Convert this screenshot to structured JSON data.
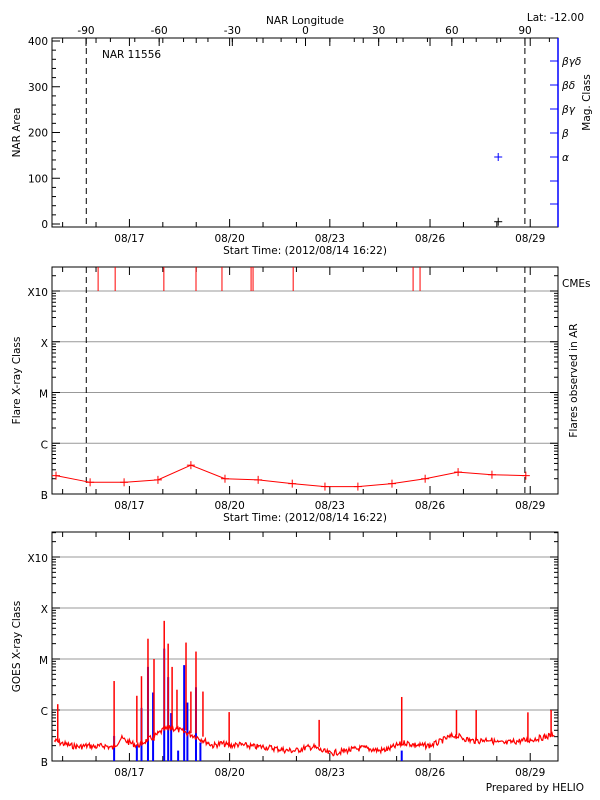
{
  "header": {
    "latitude_label": "Lat: -12.00",
    "region_label": "NAR 11556",
    "prepared_by": "Prepared by HELIO"
  },
  "colors": {
    "axes": "#000000",
    "grid": "#999999",
    "flare": "#ff0000",
    "goes_event": "#0000ff",
    "mag_class": "#0000ff",
    "cme": "#ff0000"
  },
  "x_axis": {
    "start": "2012/08/14 16:22",
    "label": "Start Time: (2012/08/14 16:22)",
    "tick_labels": [
      "08/17",
      "08/20",
      "08/23",
      "08/26",
      "08/29"
    ],
    "limb_crossings": [
      "08/15 17:00",
      "08/28 20:10"
    ]
  },
  "chart_data": [
    {
      "type": "scatter",
      "xlabel": "Start Time: (2012/08/14 16:22)",
      "ylabel": "NAR Area",
      "ylim": [
        0,
        400
      ],
      "yticks": [
        "0",
        "100",
        "200",
        "300",
        "400"
      ],
      "top_axis": {
        "label": "NAR Longitude",
        "ticks": [
          "-90",
          "-60",
          "-30",
          "0",
          "30",
          "60",
          "90"
        ]
      },
      "right_axis": {
        "label": "Mag. Class",
        "ticks": [
          "α",
          "β",
          "βγ",
          "βδ",
          "βγδ"
        ]
      },
      "area_points": [
        {
          "time": "08/28 01:00",
          "area": 5
        }
      ],
      "mag_class_points": [
        {
          "time": "08/28 01:00",
          "class": "α"
        }
      ]
    },
    {
      "type": "line",
      "xlabel": "Start Time: (2012/08/14 16:22)",
      "ylabel": "Flare X-ray Class",
      "right_label": "Flares observed in AR",
      "cme_label": "CMEs",
      "yscale": "log",
      "yticks": [
        "B",
        "C",
        "M",
        "X",
        "X10"
      ],
      "grid": true,
      "flares": [
        {
          "time": "08/14 19:15",
          "flux": 2.3e-07
        },
        {
          "time": "08/15 19:45",
          "flux": 1.7e-07
        },
        {
          "time": "08/16 20:10",
          "flux": 1.7e-07
        },
        {
          "time": "08/17 20:30",
          "flux": 1.9e-07
        },
        {
          "time": "08/18 20:10",
          "flux": 3.7e-07
        },
        {
          "time": "08/19 20:40",
          "flux": 2e-07
        },
        {
          "time": "08/20 20:30",
          "flux": 1.9e-07
        },
        {
          "time": "08/21 21:00",
          "flux": 1.6e-07
        },
        {
          "time": "08/22 20:30",
          "flux": 1.4e-07
        },
        {
          "time": "08/23 20:10",
          "flux": 1.4e-07
        },
        {
          "time": "08/24 20:40",
          "flux": 1.6e-07
        },
        {
          "time": "08/25 20:30",
          "flux": 2e-07
        },
        {
          "time": "08/26 20:10",
          "flux": 2.7e-07
        },
        {
          "time": "08/27 20:30",
          "flux": 2.4e-07
        },
        {
          "time": "08/28 20:50",
          "flux": 2.3e-07
        }
      ],
      "cmes": [
        "08/16 01:30",
        "08/16 13:45",
        "08/18 00:45",
        "08/18 23:50",
        "08/19 18:30",
        "08/20 15:25",
        "08/20 16:50",
        "08/21 21:40",
        "08/25 11:50",
        "08/25 16:50"
      ]
    },
    {
      "type": "line",
      "xlabel": "",
      "ylabel": "GOES X-ray Class",
      "yscale": "log",
      "yticks": [
        "B",
        "C",
        "M",
        "X",
        "X10"
      ],
      "grid": true,
      "background": [
        [
          "08/14 18:00",
          2.5e-07
        ],
        [
          "08/15 00:00",
          2.2e-07
        ],
        [
          "08/15 06:00",
          2e-07
        ],
        [
          "08/15 12:00",
          1.9e-07
        ],
        [
          "08/15 18:00",
          2e-07
        ],
        [
          "08/16 00:00",
          1.9e-07
        ],
        [
          "08/16 06:00",
          2e-07
        ],
        [
          "08/16 12:00",
          1.8e-07
        ],
        [
          "08/16 18:00",
          2.8e-07
        ],
        [
          "08/17 00:00",
          2.3e-07
        ],
        [
          "08/17 06:00",
          2e-07
        ],
        [
          "08/17 12:00",
          2.5e-07
        ],
        [
          "08/17 18:00",
          3e-07
        ],
        [
          "08/18 00:00",
          4e-07
        ],
        [
          "08/18 06:00",
          4.5e-07
        ],
        [
          "08/18 12:00",
          4e-07
        ],
        [
          "08/18 18:00",
          3.5e-07
        ],
        [
          "08/19 00:00",
          3e-07
        ],
        [
          "08/19 06:00",
          2.5e-07
        ],
        [
          "08/19 12:00",
          2e-07
        ],
        [
          "08/19 18:00",
          2.2e-07
        ],
        [
          "08/20 00:00",
          2e-07
        ],
        [
          "08/20 06:00",
          2.1e-07
        ],
        [
          "08/20 12:00",
          2e-07
        ],
        [
          "08/20 18:00",
          1.9e-07
        ],
        [
          "08/21 00:00",
          1.9e-07
        ],
        [
          "08/21 06:00",
          1.8e-07
        ],
        [
          "08/21 12:00",
          1.7e-07
        ],
        [
          "08/21 18:00",
          1.6e-07
        ],
        [
          "08/22 00:00",
          1.6e-07
        ],
        [
          "08/22 06:00",
          1.8e-07
        ],
        [
          "08/22 12:00",
          1.9e-07
        ],
        [
          "08/22 18:00",
          1.6e-07
        ],
        [
          "08/23 00:00",
          1.4e-07
        ],
        [
          "08/23 06:00",
          1.5e-07
        ],
        [
          "08/23 12:00",
          1.6e-07
        ],
        [
          "08/23 18:00",
          1.7e-07
        ],
        [
          "08/24 00:00",
          1.8e-07
        ],
        [
          "08/24 06:00",
          1.7e-07
        ],
        [
          "08/24 12:00",
          1.6e-07
        ],
        [
          "08/24 18:00",
          1.7e-07
        ],
        [
          "08/25 00:00",
          2e-07
        ],
        [
          "08/25 06:00",
          2.3e-07
        ],
        [
          "08/25 12:00",
          2.1e-07
        ],
        [
          "08/25 18:00",
          2e-07
        ],
        [
          "08/26 00:00",
          2e-07
        ],
        [
          "08/26 06:00",
          2.3e-07
        ],
        [
          "08/26 12:00",
          2.8e-07
        ],
        [
          "08/26 18:00",
          3.2e-07
        ],
        [
          "08/27 00:00",
          2.8e-07
        ],
        [
          "08/27 06:00",
          2.5e-07
        ],
        [
          "08/27 12:00",
          2.5e-07
        ],
        [
          "08/27 18:00",
          2.7e-07
        ],
        [
          "08/28 00:00",
          2.3e-07
        ],
        [
          "08/28 06:00",
          2.2e-07
        ],
        [
          "08/28 12:00",
          2.4e-07
        ],
        [
          "08/28 18:00",
          2.5e-07
        ],
        [
          "08/29 00:00",
          2.6e-07
        ],
        [
          "08/29 06:00",
          2.8e-07
        ],
        [
          "08/29 12:00",
          3e-07
        ],
        [
          "08/29 18:00",
          3.5e-07
        ]
      ],
      "peaks": [
        [
          "08/14 20:30",
          1.3e-06
        ],
        [
          "08/16 13:00",
          3.7e-06
        ],
        [
          "08/17 05:20",
          1.9e-06
        ],
        [
          "08/17 08:40",
          4.6e-06
        ],
        [
          "08/17 13:20",
          2.5e-05
        ],
        [
          "08/17 17:40",
          1e-05
        ],
        [
          "08/18 01:00",
          5.6e-05
        ],
        [
          "08/18 03:50",
          2e-05
        ],
        [
          "08/18 06:40",
          7e-06
        ],
        [
          "08/18 10:10",
          2.5e-06
        ],
        [
          "08/18 16:40",
          2.1e-05
        ],
        [
          "08/18 20:10",
          2.3e-06
        ],
        [
          "08/18 23:50",
          1.4e-05
        ],
        [
          "08/19 04:50",
          2.3e-06
        ],
        [
          "08/19 23:40",
          9.1e-07
        ],
        [
          "08/22 16:20",
          6.4e-07
        ],
        [
          "08/25 03:40",
          1.8e-06
        ],
        [
          "08/26 19:00",
          1e-06
        ],
        [
          "08/27 09:10",
          1e-06
        ],
        [
          "08/28 22:20",
          9e-07
        ],
        [
          "08/29 15:00",
          1e-06
        ]
      ],
      "events": [
        [
          "08/16 13:00",
          3.1e-07
        ],
        [
          "08/17 05:20",
          2.1e-07
        ],
        [
          "08/17 08:40",
          1.1e-06
        ],
        [
          "08/17 13:20",
          7e-06
        ],
        [
          "08/17 17:00",
          2.2e-06
        ],
        [
          "08/18 01:00",
          1.6e-05
        ],
        [
          "08/18 03:50",
          4.4e-06
        ],
        [
          "08/18 06:00",
          8.7e-07
        ],
        [
          "08/18 11:00",
          1.6e-07
        ],
        [
          "08/18 15:20",
          7.6e-06
        ],
        [
          "08/18 17:40",
          1.4e-06
        ],
        [
          "08/18 23:50",
          2.8e-06
        ],
        [
          "08/19 03:00",
          2.3e-07
        ],
        [
          "08/25 03:40",
          1.6e-07
        ]
      ]
    }
  ]
}
